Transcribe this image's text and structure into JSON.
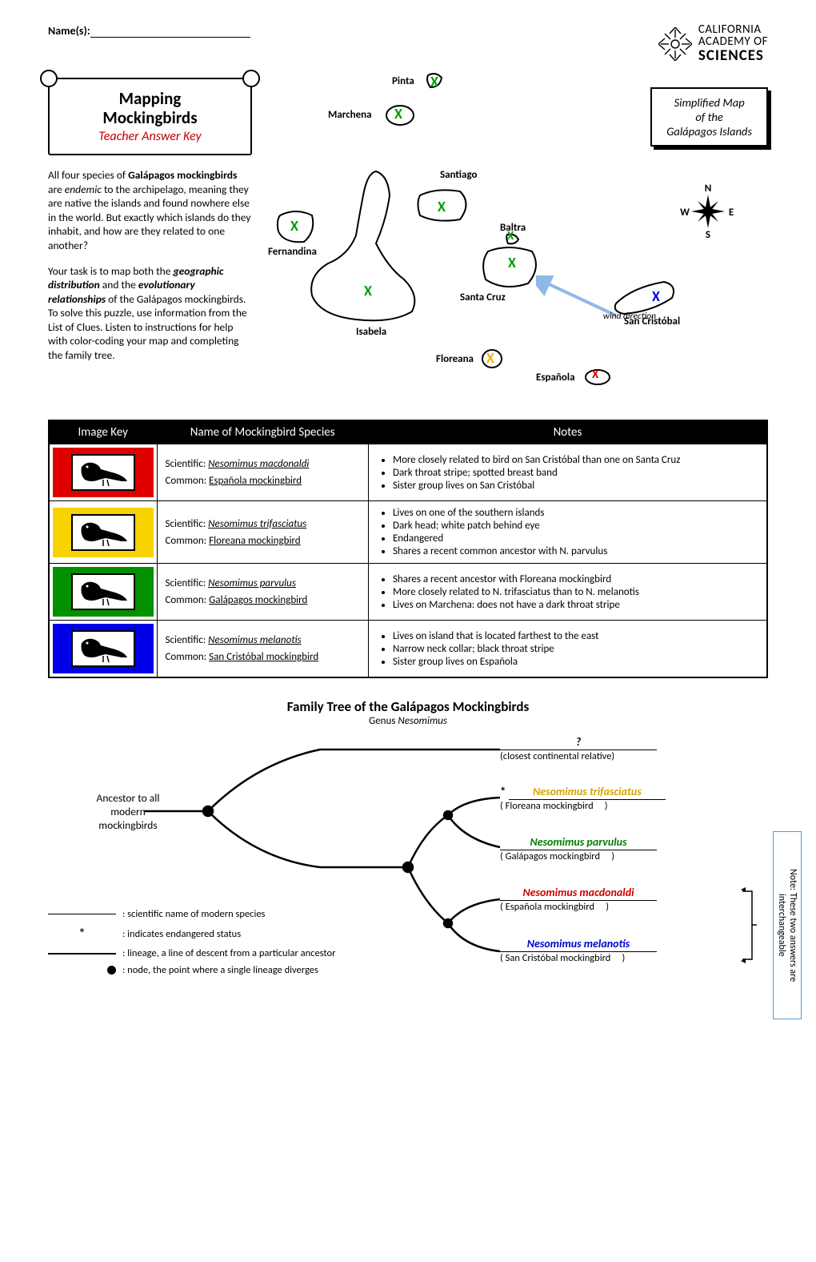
{
  "header": {
    "name_label": "Name(s):",
    "logo_line1": "CALIFORNIA",
    "logo_line2": "ACADEMY OF",
    "logo_line3": "SCIENCES"
  },
  "scroll": {
    "title_line1": "Mapping",
    "title_line2": "Mockingbirds",
    "subtitle": "Teacher Answer Key"
  },
  "intro": {
    "p1a": "All four species of ",
    "p1b": "Galápagos mockingbirds",
    "p1c": " are ",
    "p1d": "endemic",
    "p1e": " to the archipelago, meaning they are native the islands and found nowhere else in the world.  But exactly which islands do they inhabit, and how are they related to one another?",
    "p2a": "Your task is to map both the ",
    "p2b": "geographic distribution",
    "p2c": " and the ",
    "p2d": "evolutionary relationships",
    "p2e": " of the Galápagos mockingbirds.  To solve this puzzle, use information from the List of Clues.  Listen to instructions for help with color-coding your map and completing the family tree."
  },
  "map": {
    "title_l1": "Simplified Map",
    "title_l2": "of the",
    "title_l3": "Galápagos Islands",
    "wind": "wind direction",
    "compass": {
      "n": "N",
      "s": "S",
      "e": "E",
      "w": "W"
    },
    "islands": {
      "pinta": "Pinta",
      "marchena": "Marchena",
      "santiago": "Santiago",
      "fernandina": "Fernandina",
      "isabela": "Isabela",
      "baltra": "Baltra",
      "santacruz": "Santa Cruz",
      "floreana": "Floreana",
      "espanola": "Española",
      "sancristobal": "San Cristóbal"
    }
  },
  "table": {
    "headers": {
      "h1": "Image Key",
      "h2": "Name of Mockingbird Species",
      "h3": "Notes"
    },
    "rows": [
      {
        "color": "#e00000",
        "sci_label": "Scientific:",
        "sci": "Nesomimus macdonaldi",
        "com_label": "Common:",
        "com": "Española mockingbird",
        "notes": [
          "More closely related to bird on San Cristóbal than one on Santa Cruz",
          "Dark throat stripe; spotted breast band",
          "Sister group lives on San Cristóbal"
        ]
      },
      {
        "color": "#f7d300",
        "sci_label": "Scientific:",
        "sci": "Nesomimus trifasciatus",
        "com_label": "Common:",
        "com": "Floreana mockingbird",
        "notes": [
          "Lives on one of the southern islands",
          "Dark head; white patch behind eye",
          "Endangered",
          "Shares a recent common ancestor with N. parvulus"
        ]
      },
      {
        "color": "#009000",
        "sci_label": "Scientific:",
        "sci": "Nesomimus parvulus",
        "com_label": "Common:",
        "com": "Galápagos mockingbird",
        "notes": [
          "Shares a recent ancestor with Floreana mockingbird",
          "More closely related to N. trifasciatus than to N. melanotis",
          "Lives on Marchena: does not have a dark throat stripe"
        ]
      },
      {
        "color": "#0000e8",
        "sci_label": "Scientific:",
        "sci": "Nesomimus melanotis",
        "com_label": "Common:",
        "com": "San Cristóbal mockingbird",
        "notes": [
          "Lives on island that is located farthest to the east",
          "Narrow neck collar; black throat stripe",
          "Sister group lives on Española"
        ]
      }
    ]
  },
  "tree": {
    "title": "Family Tree of the Galápagos Mockingbirds",
    "subtitle_a": "Genus ",
    "subtitle_b": "Nesomimus",
    "ancestor_l1": "Ancestor to all",
    "ancestor_l2": "modern",
    "ancestor_l3": "mockingbirds",
    "tips": [
      {
        "name": "?",
        "sub": "(closest continental relative)",
        "color": "",
        "star": ""
      },
      {
        "name": "Nesomimus trifasciatus",
        "sub_a": "(  Floreana mockingbird",
        "sub_b": ")",
        "color": "c-yellow",
        "star": "* "
      },
      {
        "name": "Nesomimus parvulus",
        "sub_a": "(  Galápagos mockingbird",
        "sub_b": ")",
        "color": "c-green",
        "star": ""
      },
      {
        "name": "Nesomimus macdonaldi",
        "sub_a": "(  Española mockingbird",
        "sub_b": ")",
        "color": "c-red",
        "star": ""
      },
      {
        "name": "Nesomimus melanotis",
        "sub_a": "(  San Cristóbal mockingbird",
        "sub_b": ")",
        "color": "c-blue",
        "star": ""
      }
    ],
    "legend": {
      "l1": ": scientific name of modern species",
      "l2": ": indicates endangered status",
      "l3": ": lineage, a line of descent from a particular ancestor",
      "l4": ": node, the point where a single lineage diverges"
    },
    "side_note": "Note: These two answers are interchangeable"
  }
}
